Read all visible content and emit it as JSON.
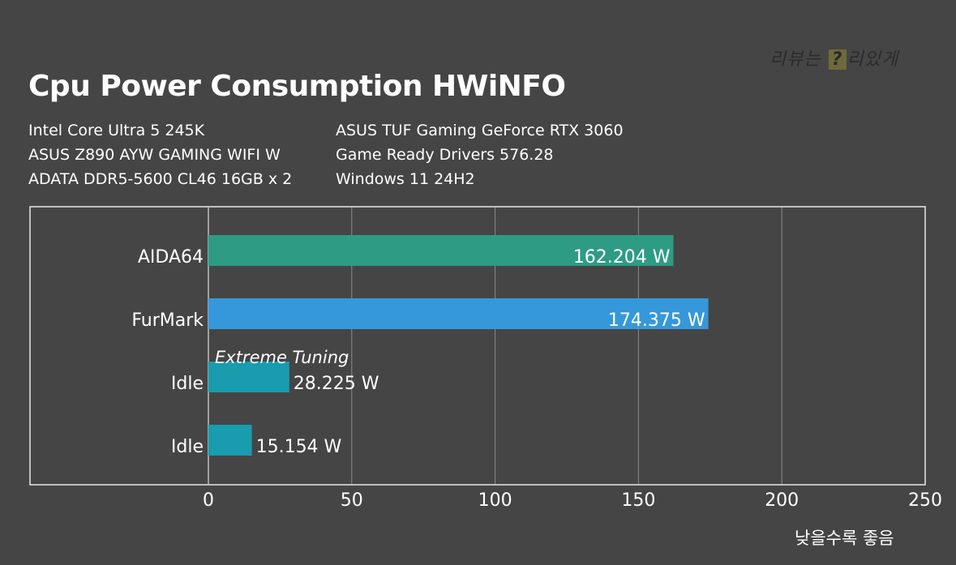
{
  "watermark": {
    "pre": "리뷰는",
    "box": "?",
    "post": "리있게"
  },
  "header": {
    "title": "Cpu Power Consumption HWiNFO",
    "specs_left": [
      "Intel Core Ultra 5 245K",
      "ASUS Z890 AYW GAMING WIFI W",
      "ADATA DDR5-5600 CL46 16GB x 2"
    ],
    "specs_right": [
      "ASUS TUF Gaming GeForce RTX 3060",
      "Game Ready Drivers 576.28",
      "Windows 11 24H2"
    ]
  },
  "footnote": "낮을수록 좋음",
  "chart_data": {
    "type": "bar",
    "orientation": "horizontal",
    "categories": [
      "AIDA64",
      "FurMark",
      "Idle",
      "Idle"
    ],
    "values": [
      162.204,
      174.375,
      28.225,
      15.154
    ],
    "value_labels": [
      "162.204 W",
      "174.375 W",
      "28.225 W",
      "15.154 W"
    ],
    "colors": [
      "#2e9b84",
      "#3598db",
      "#189cae",
      "#189cae"
    ],
    "annotation": {
      "text": "Extreme Tuning",
      "category_index": 2
    },
    "xlim": [
      0,
      250
    ],
    "xticks": [
      0,
      50,
      100,
      150,
      200,
      250
    ],
    "grid": true,
    "title": "",
    "xlabel": "",
    "ylabel": ""
  }
}
